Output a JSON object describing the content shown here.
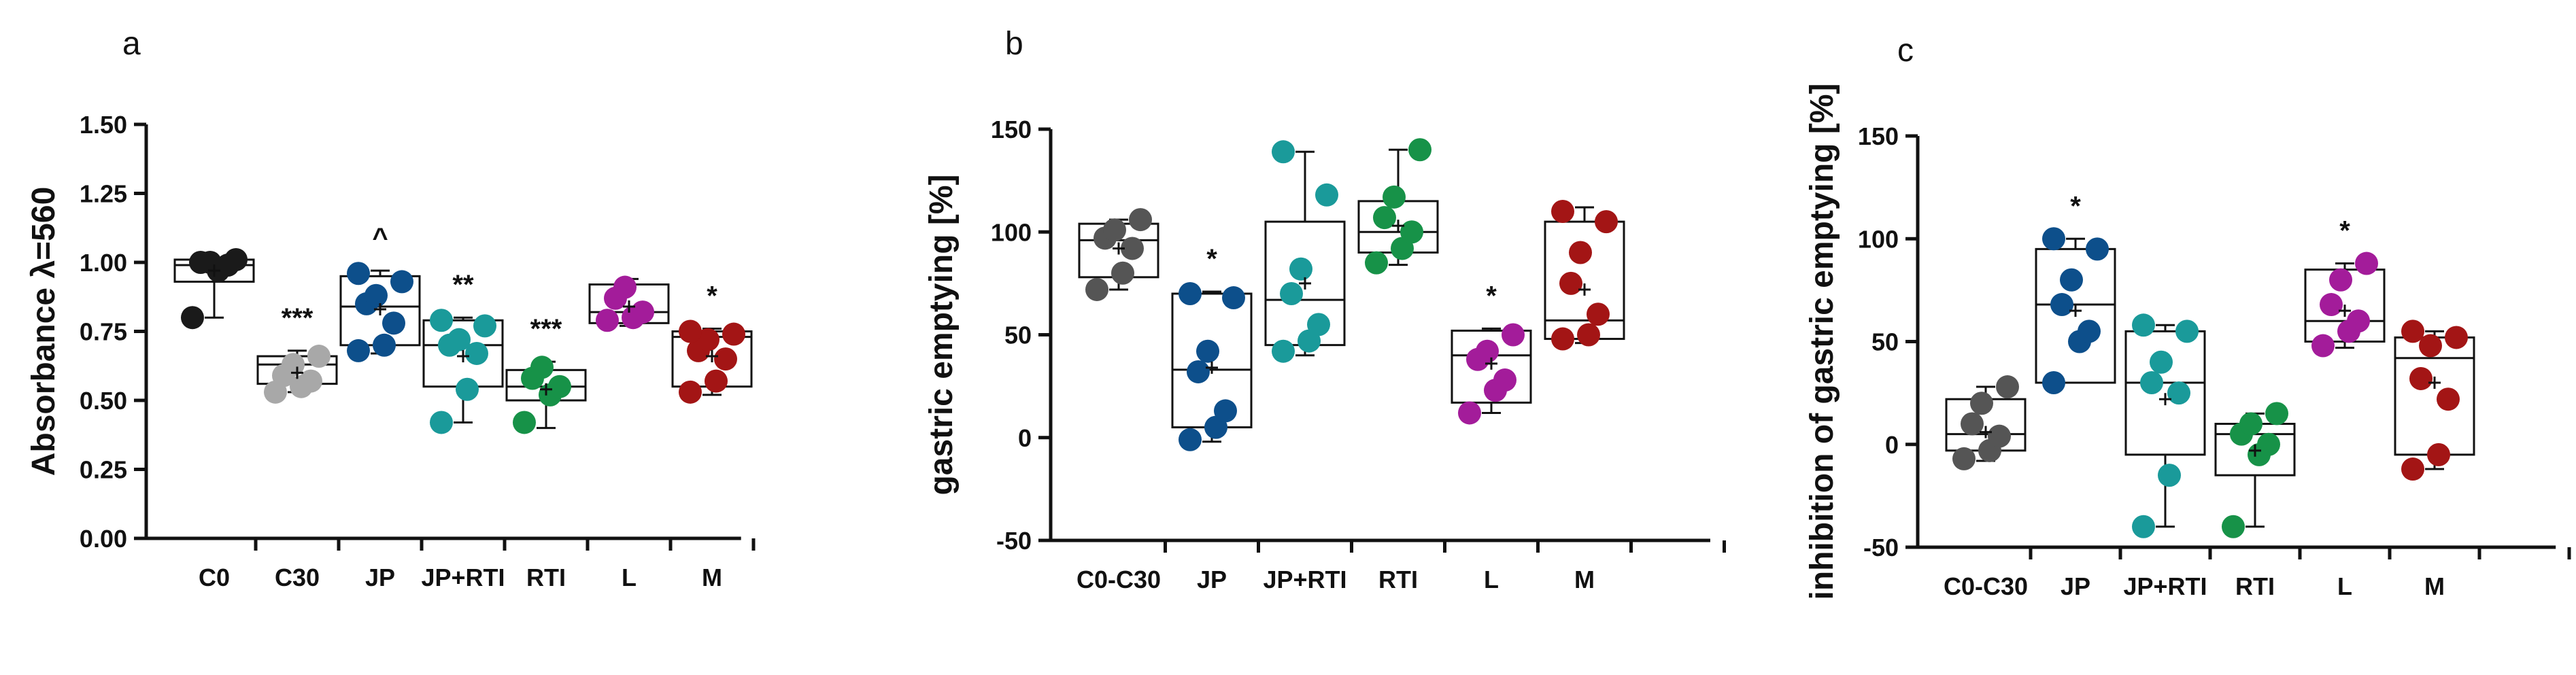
{
  "figure_colors": {
    "C0": "#1a1a1a",
    "C30": "#a8a8a8",
    "C0-C30": "#555555",
    "JP": "#0d4f8b",
    "JP+RTI": "#1a9a9a",
    "RTI": "#179248",
    "L": "#a31c9a",
    "M": "#a31515"
  },
  "chart_data": [
    {
      "type": "box",
      "panel": "a",
      "title": "",
      "ylabel": "Absorbance λ=560",
      "ylim": [
        0,
        1.5
      ],
      "yticks": [
        "0.00",
        "0.25",
        "0.50",
        "0.75",
        "1.00",
        "1.25",
        "1.50"
      ],
      "ytick_values": [
        0,
        0.25,
        0.5,
        0.75,
        1.0,
        1.25,
        1.5
      ],
      "categories": [
        "C0",
        "C30",
        "JP",
        "JP+RTI",
        "RTI",
        "L",
        "M"
      ],
      "significance": [
        "",
        "***",
        "^",
        "**",
        "***",
        "",
        "*"
      ],
      "groups": [
        {
          "name": "C0",
          "q1": 0.93,
          "median": 0.99,
          "q3": 1.01,
          "min": 0.8,
          "max": 1.01,
          "mean": 0.97,
          "points": [
            0.8,
            0.97,
            0.99,
            1.0,
            1.0,
            1.01
          ]
        },
        {
          "name": "C30",
          "q1": 0.56,
          "median": 0.63,
          "q3": 0.66,
          "min": 0.53,
          "max": 0.68,
          "mean": 0.6,
          "points": [
            0.53,
            0.55,
            0.57,
            0.59,
            0.63,
            0.66
          ]
        },
        {
          "name": "JP",
          "q1": 0.7,
          "median": 0.84,
          "q3": 0.95,
          "min": 0.67,
          "max": 0.97,
          "mean": 0.83,
          "points": [
            0.68,
            0.7,
            0.78,
            0.85,
            0.88,
            0.93,
            0.96
          ]
        },
        {
          "name": "JP+RTI",
          "q1": 0.55,
          "median": 0.7,
          "q3": 0.79,
          "min": 0.42,
          "max": 0.8,
          "mean": 0.66,
          "points": [
            0.42,
            0.54,
            0.67,
            0.7,
            0.72,
            0.77,
            0.79
          ]
        },
        {
          "name": "RTI",
          "q1": 0.5,
          "median": 0.55,
          "q3": 0.61,
          "min": 0.4,
          "max": 0.64,
          "mean": 0.54,
          "points": [
            0.42,
            0.52,
            0.55,
            0.58,
            0.62
          ]
        },
        {
          "name": "L",
          "q1": 0.78,
          "median": 0.82,
          "q3": 0.92,
          "min": 0.77,
          "max": 0.94,
          "mean": 0.84,
          "points": [
            0.79,
            0.8,
            0.82,
            0.87,
            0.91
          ]
        },
        {
          "name": "M",
          "q1": 0.55,
          "median": 0.73,
          "q3": 0.75,
          "min": 0.52,
          "max": 0.76,
          "mean": 0.66,
          "points": [
            0.53,
            0.57,
            0.65,
            0.68,
            0.72,
            0.74,
            0.75
          ]
        }
      ]
    },
    {
      "type": "box",
      "panel": "b",
      "title": "",
      "ylabel": "gastric emptying [%]",
      "ylim": [
        -50,
        150
      ],
      "yticks": [
        "-50",
        "0",
        "50",
        "100",
        "150"
      ],
      "ytick_values": [
        -50,
        0,
        50,
        100,
        150
      ],
      "categories": [
        "C0-C30",
        "JP",
        "JP+RTI",
        "RTI",
        "L",
        "M"
      ],
      "significance": [
        "",
        "*",
        "",
        "",
        "*",
        ""
      ],
      "groups": [
        {
          "name": "C0-C30",
          "q1": 78,
          "median": 96,
          "q3": 104,
          "min": 72,
          "max": 106,
          "mean": 92,
          "points": [
            72,
            80,
            92,
            97,
            101,
            106
          ]
        },
        {
          "name": "JP",
          "q1": 5,
          "median": 33,
          "q3": 70,
          "min": -2,
          "max": 71,
          "mean": 34,
          "points": [
            -1,
            5,
            13,
            32,
            42,
            68,
            70
          ]
        },
        {
          "name": "JP+RTI",
          "q1": 45,
          "median": 67,
          "q3": 105,
          "min": 40,
          "max": 139,
          "mean": 75,
          "points": [
            42,
            47,
            55,
            70,
            82,
            118,
            139
          ]
        },
        {
          "name": "RTI",
          "q1": 90,
          "median": 100,
          "q3": 115,
          "min": 84,
          "max": 140,
          "mean": 103,
          "points": [
            85,
            92,
            100,
            107,
            117,
            140
          ]
        },
        {
          "name": "L",
          "q1": 17,
          "median": 40,
          "q3": 52,
          "min": 12,
          "max": 53,
          "mean": 36,
          "points": [
            12,
            23,
            28,
            38,
            42,
            50
          ]
        },
        {
          "name": "M",
          "q1": 48,
          "median": 57,
          "q3": 105,
          "min": 46,
          "max": 112,
          "mean": 72,
          "points": [
            48,
            50,
            60,
            75,
            90,
            105,
            110
          ]
        }
      ]
    },
    {
      "type": "box",
      "panel": "c",
      "title": "",
      "ylabel": "inhibition of gastric emptying [%]",
      "ylim": [
        -50,
        150
      ],
      "yticks": [
        "-50",
        "0",
        "50",
        "100",
        "150"
      ],
      "ytick_values": [
        -50,
        0,
        50,
        100,
        150
      ],
      "categories": [
        "C0-C30",
        "JP",
        "JP+RTI",
        "RTI",
        "L",
        "M"
      ],
      "significance": [
        "",
        "*",
        "",
        "",
        "*",
        ""
      ],
      "groups": [
        {
          "name": "C0-C30",
          "q1": -3,
          "median": 5,
          "q3": 22,
          "min": -8,
          "max": 28,
          "mean": 6,
          "points": [
            -7,
            -3,
            4,
            10,
            20,
            28
          ]
        },
        {
          "name": "JP",
          "q1": 30,
          "median": 68,
          "q3": 95,
          "min": 30,
          "max": 100,
          "mean": 65,
          "points": [
            30,
            50,
            55,
            68,
            80,
            95,
            100
          ]
        },
        {
          "name": "JP+RTI",
          "q1": -5,
          "median": 30,
          "q3": 55,
          "min": -40,
          "max": 58,
          "mean": 22,
          "points": [
            -40,
            -15,
            25,
            30,
            40,
            55,
            58
          ]
        },
        {
          "name": "RTI",
          "q1": -15,
          "median": 5,
          "q3": 10,
          "min": -40,
          "max": 15,
          "mean": -3,
          "points": [
            -40,
            -5,
            0,
            5,
            10,
            15
          ]
        },
        {
          "name": "L",
          "q1": 50,
          "median": 60,
          "q3": 85,
          "min": 47,
          "max": 88,
          "mean": 65,
          "points": [
            48,
            55,
            60,
            68,
            80,
            88
          ]
        },
        {
          "name": "M",
          "q1": -5,
          "median": 42,
          "q3": 52,
          "min": -12,
          "max": 55,
          "mean": 30,
          "points": [
            -12,
            -5,
            22,
            32,
            48,
            52,
            55
          ]
        }
      ]
    }
  ]
}
